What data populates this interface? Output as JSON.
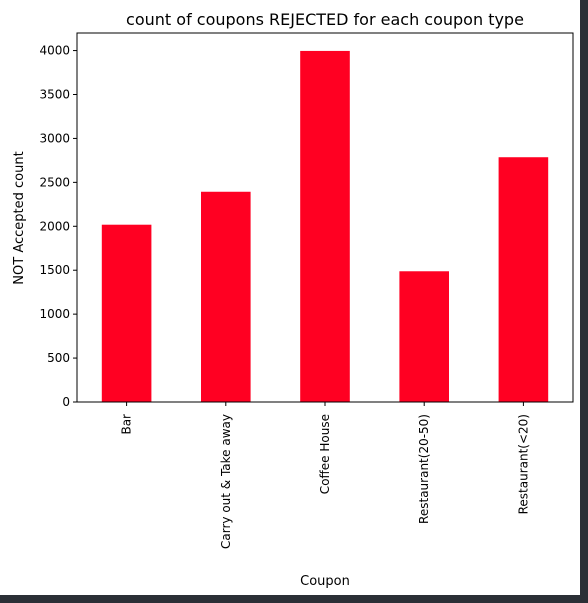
{
  "chart_data": {
    "type": "bar",
    "title": "count of coupons REJECTED for each coupon type",
    "xlabel": "Coupon",
    "ylabel": "NOT Accepted count",
    "categories": [
      "Bar",
      "Carry out & Take away",
      "Coffee House",
      "Restaurant(20-50)",
      "Restaurant(<20)"
    ],
    "values": [
      2018,
      2393,
      3996,
      1488,
      2786
    ],
    "ylim": [
      0,
      4200
    ],
    "yticks": [
      0,
      500,
      1000,
      1500,
      2000,
      2500,
      3000,
      3500,
      4000
    ],
    "grid": false,
    "bar_color": "#ff0022",
    "series": [
      {
        "values": [
          2018,
          2393,
          3996,
          1488,
          2786
        ]
      }
    ]
  }
}
